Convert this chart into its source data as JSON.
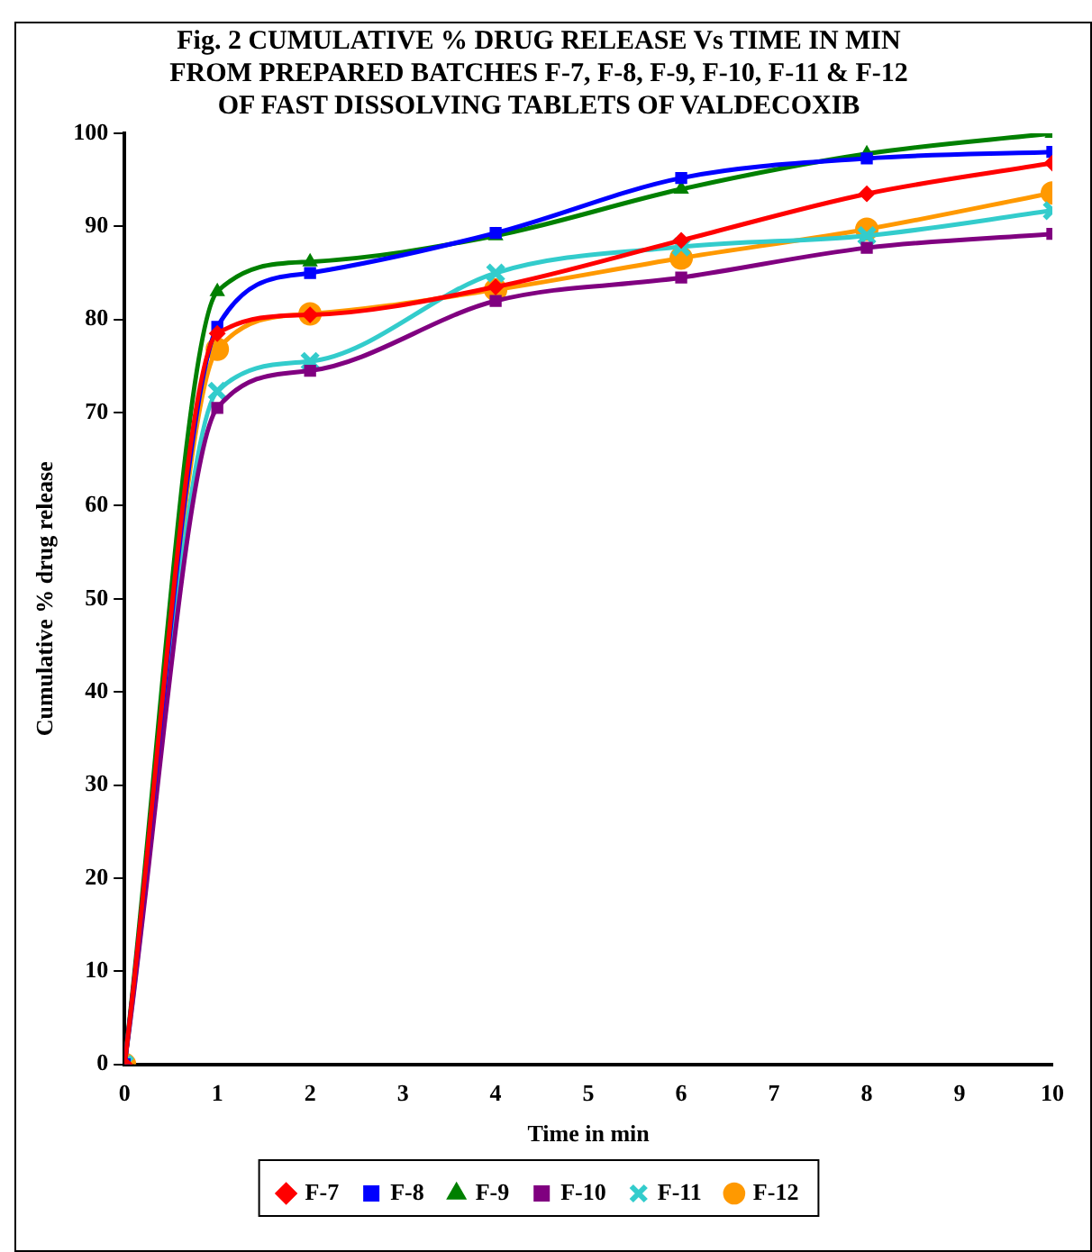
{
  "chart_data": {
    "type": "line",
    "title": [
      "Fig. 2 CUMULATIVE % DRUG RELEASE Vs TIME IN MIN",
      "FROM PREPARED BATCHES F-7, F-8, F-9, F-10, F-11 & F-12",
      "OF FAST DISSOLVING TABLETS OF VALDECOXIB"
    ],
    "xlabel": "Time in min",
    "ylabel": "Cumulative % drug release",
    "x": [
      0,
      1,
      2,
      4,
      6,
      8,
      10
    ],
    "series": [
      {
        "name": "F-7",
        "color": "#ff0000",
        "marker": "diamond",
        "values": [
          0,
          78.5,
          80.5,
          83.5,
          88.5,
          93.5,
          96.8
        ]
      },
      {
        "name": "F-8",
        "color": "#0000ff",
        "marker": "square",
        "values": [
          0,
          79.2,
          85,
          89.3,
          95.2,
          97.3,
          98
        ]
      },
      {
        "name": "F-9",
        "color": "#008000",
        "marker": "triangle",
        "values": [
          0,
          83,
          86.2,
          89,
          94,
          97.8,
          100
        ]
      },
      {
        "name": "F-10",
        "color": "#800080",
        "marker": "square",
        "values": [
          0,
          70.5,
          74.5,
          82,
          84.5,
          87.7,
          89.2
        ]
      },
      {
        "name": "F-11",
        "color": "#33cccc",
        "marker": "cross",
        "values": [
          0,
          72.3,
          75.5,
          85,
          87.8,
          89,
          91.7
        ]
      },
      {
        "name": "F-12",
        "color": "#ff9900",
        "marker": "circle",
        "values": [
          0,
          76.8,
          80.6,
          83.2,
          86.6,
          89.7,
          93.6
        ]
      }
    ],
    "xlim": [
      0,
      10
    ],
    "xticks": [
      0,
      1,
      2,
      3,
      4,
      5,
      6,
      7,
      8,
      9,
      10
    ],
    "ylim": [
      0,
      100
    ],
    "yticks": [
      0,
      10,
      20,
      30,
      40,
      50,
      60,
      70,
      80,
      90,
      100
    ],
    "grid": false,
    "legend": "bottom",
    "line_style": "solid"
  }
}
